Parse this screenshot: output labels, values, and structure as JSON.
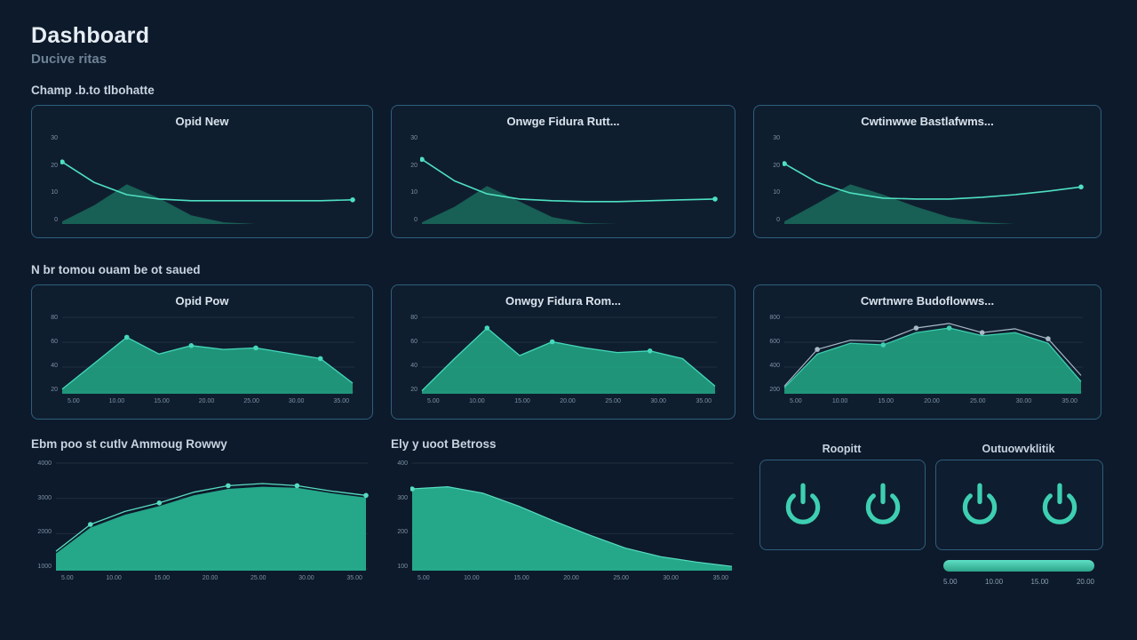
{
  "theme": {
    "bg": "#0d1a2b",
    "accent": "#3ecfb2",
    "border": "#2e5f7c",
    "area_green": "#22a584",
    "line_teal": "#4ee0c2"
  },
  "header": {
    "title": "Dashboard",
    "subtitle": "Ducive ritas"
  },
  "sections": {
    "row1_label": "Champ .b.to tlbohatte",
    "row2_label": "N br tomou ouam be ot saued",
    "row3_left_label": "Ebm poo st cutlv Ammoug Rowwy",
    "row3_mid_label": "Ely y uoot Betross",
    "power1_title": "Roopitt",
    "power2_title": "Outuowvklitik"
  },
  "panels": {
    "r1c1": {
      "title": "Opid New"
    },
    "r1c2": {
      "title": "Onwge Fidura Rutt..."
    },
    "r1c3": {
      "title": "Cwtinwwe Bastlafwms..."
    },
    "r2c1": {
      "title": "Opid Pow"
    },
    "r2c2": {
      "title": "Onwgy Fidura Rom..."
    },
    "r2c3": {
      "title": "Cwrtnwre Budoflowws..."
    }
  },
  "chart_data": {
    "r1c1": {
      "type": "line",
      "ymax": 100,
      "y_labels": [
        "30",
        "20",
        "10",
        "0"
      ],
      "series": [
        {
          "kind": "area",
          "color": "#1e8a6f",
          "opacity": 0.6,
          "values": [
            3,
            22,
            46,
            30,
            10,
            2,
            0,
            0,
            0,
            0
          ]
        },
        {
          "kind": "line",
          "color": "#4ee0c2",
          "width": 1.6,
          "markers": [
            0,
            9
          ],
          "values": [
            72,
            48,
            34,
            29,
            27,
            27,
            27,
            27,
            27,
            28
          ]
        }
      ]
    },
    "r1c2": {
      "type": "line",
      "ymax": 100,
      "y_labels": [
        "30",
        "20",
        "10",
        "0"
      ],
      "series": [
        {
          "kind": "area",
          "color": "#1e8a6f",
          "opacity": 0.6,
          "values": [
            2,
            20,
            44,
            26,
            8,
            1,
            0,
            0,
            0,
            0
          ]
        },
        {
          "kind": "line",
          "color": "#4ee0c2",
          "width": 1.6,
          "markers": [
            0,
            9
          ],
          "values": [
            75,
            50,
            35,
            29,
            27,
            26,
            26,
            27,
            28,
            29
          ]
        }
      ]
    },
    "r1c3": {
      "type": "line",
      "ymax": 100,
      "y_labels": [
        "30",
        "20",
        "10",
        "0"
      ],
      "series": [
        {
          "kind": "area",
          "color": "#1e8a6f",
          "opacity": 0.6,
          "values": [
            3,
            24,
            46,
            34,
            20,
            8,
            2,
            0,
            0,
            0
          ]
        },
        {
          "kind": "line",
          "color": "#4ee0c2",
          "width": 1.6,
          "markers": [
            0,
            9
          ],
          "values": [
            70,
            48,
            36,
            30,
            29,
            29,
            31,
            34,
            38,
            43
          ]
        }
      ]
    },
    "r2c1": {
      "type": "area",
      "ymax": 100,
      "grid": true,
      "y_labels": [
        "80",
        "60",
        "40",
        "20"
      ],
      "x_labels": [
        "5.00",
        "10.00",
        "15.00",
        "20.00",
        "25.00",
        "30.00",
        "35.00"
      ],
      "series": [
        {
          "kind": "area",
          "color": "#22a584",
          "opacity": 0.88,
          "values": [
            6,
            40,
            74,
            52,
            63,
            58,
            60,
            53,
            46,
            14
          ]
        },
        {
          "kind": "line",
          "color": "#45d8ba",
          "width": 1.3,
          "markers": [
            2,
            4,
            6,
            8
          ],
          "values": [
            6,
            40,
            74,
            52,
            63,
            58,
            60,
            53,
            46,
            14
          ]
        }
      ]
    },
    "r2c2": {
      "type": "area",
      "ymax": 100,
      "grid": true,
      "y_labels": [
        "80",
        "60",
        "40",
        "20"
      ],
      "x_labels": [
        "5.00",
        "10.00",
        "15.00",
        "20.00",
        "25.00",
        "30.00",
        "35.00"
      ],
      "series": [
        {
          "kind": "area",
          "color": "#22a584",
          "opacity": 0.88,
          "values": [
            4,
            46,
            86,
            50,
            68,
            60,
            54,
            56,
            46,
            10
          ]
        },
        {
          "kind": "line",
          "color": "#45d8ba",
          "width": 1.3,
          "markers": [
            2,
            4,
            7
          ],
          "values": [
            4,
            46,
            86,
            50,
            68,
            60,
            54,
            56,
            46,
            10
          ]
        }
      ]
    },
    "r2c3": {
      "type": "area",
      "ymax": 100,
      "grid": true,
      "y_labels": [
        "800",
        "600",
        "400",
        "200"
      ],
      "x_labels": [
        "5.00",
        "10.00",
        "15.00",
        "20.00",
        "25.00",
        "30.00",
        "35.00"
      ],
      "series": [
        {
          "kind": "area",
          "color": "#22a584",
          "opacity": 0.88,
          "values": [
            8,
            52,
            66,
            64,
            80,
            86,
            76,
            80,
            66,
            16
          ]
        },
        {
          "kind": "line",
          "color": "#a9bac7",
          "width": 1.2,
          "markers": [
            1,
            4,
            6,
            8
          ],
          "values": [
            10,
            58,
            70,
            69,
            86,
            92,
            80,
            85,
            72,
            24
          ]
        },
        {
          "kind": "line",
          "color": "#3fd0b0",
          "width": 1.2,
          "markers": [
            3,
            5
          ],
          "values": [
            8,
            52,
            66,
            64,
            80,
            86,
            76,
            80,
            66,
            16
          ]
        }
      ]
    },
    "big_left": {
      "type": "area",
      "ymax": 100,
      "grid": true,
      "y_width": 26,
      "y_labels": [
        "4000",
        "3000",
        "2000",
        "1000"
      ],
      "x_labels": [
        "5.00",
        "10.00",
        "15.00",
        "20.00",
        "25.00",
        "30.00",
        "35.00"
      ],
      "series": [
        {
          "kind": "area",
          "color": "#27b492",
          "opacity": 0.92,
          "values": [
            16,
            40,
            52,
            60,
            70,
            76,
            78,
            77,
            72,
            68
          ]
        },
        {
          "kind": "line",
          "color": "#58dcc0",
          "width": 1.3,
          "markers": [
            1,
            3,
            5,
            7,
            9
          ],
          "values": [
            18,
            43,
            55,
            63,
            73,
            79,
            81,
            79,
            74,
            70
          ]
        }
      ]
    },
    "big_mid": {
      "type": "area",
      "ymax": 100,
      "grid": true,
      "y_width": 22,
      "y_labels": [
        "400",
        "300",
        "200",
        "100"
      ],
      "x_labels": [
        "5.00",
        "10.00",
        "15.00",
        "20.00",
        "25.00",
        "30.00",
        "35.00"
      ],
      "series": [
        {
          "kind": "area",
          "color": "#27b492",
          "opacity": 0.92,
          "values": [
            76,
            78,
            72,
            60,
            46,
            33,
            21,
            13,
            8,
            4
          ]
        },
        {
          "kind": "line",
          "color": "#58dcc0",
          "width": 1.2,
          "markers": [
            0
          ],
          "values": [
            76,
            78,
            72,
            60,
            46,
            33,
            21,
            13,
            8,
            4
          ]
        }
      ]
    }
  },
  "progress": {
    "labels": [
      "5.00",
      "10.00",
      "15.00",
      "20.00"
    ]
  }
}
